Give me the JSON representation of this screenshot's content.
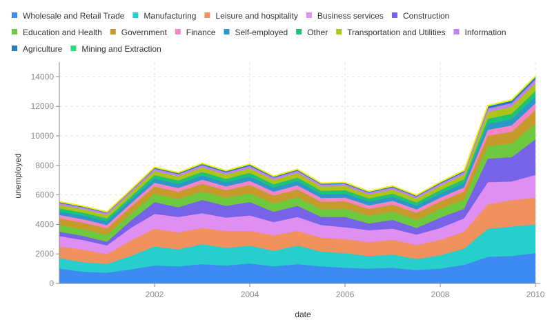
{
  "chart_data": {
    "type": "area",
    "stacked": true,
    "xlabel": "date",
    "ylabel": "unemployed",
    "xlim": [
      2000,
      2010.1
    ],
    "ylim": [
      0,
      15000
    ],
    "x_ticks": [
      2002,
      2004,
      2006,
      2008,
      2010
    ],
    "y_ticks": [
      0,
      2000,
      4000,
      6000,
      8000,
      10000,
      12000,
      14000
    ],
    "grid": true,
    "legend_position": "top",
    "x": [
      2000.0,
      2000.5,
      2001.0,
      2001.5,
      2002.0,
      2002.5,
      2003.0,
      2003.5,
      2004.0,
      2004.5,
      2005.0,
      2005.5,
      2006.0,
      2006.5,
      2007.0,
      2007.5,
      2008.0,
      2008.5,
      2009.0,
      2009.5,
      2010.0
    ],
    "series": [
      {
        "name": "Wholesale and Retail Trade",
        "color": "#3d8bf2",
        "values": [
          1000,
          780,
          720,
          950,
          1200,
          1150,
          1300,
          1200,
          1350,
          1150,
          1300,
          1150,
          1050,
          1000,
          1050,
          900,
          1000,
          1250,
          1800,
          1850,
          2050
        ]
      },
      {
        "name": "Manufacturing",
        "color": "#26cfcb",
        "values": [
          700,
          650,
          600,
          900,
          1300,
          1150,
          1350,
          1200,
          1200,
          1050,
          1250,
          1000,
          1000,
          850,
          900,
          750,
          900,
          1100,
          1900,
          2000,
          1950
        ]
      },
      {
        "name": "Leisure and hospitality",
        "color": "#f0915e",
        "values": [
          800,
          850,
          650,
          1050,
          1200,
          1150,
          1100,
          1150,
          1000,
          1050,
          1000,
          950,
          950,
          950,
          1000,
          950,
          1050,
          1150,
          1650,
          1800,
          1800
        ]
      },
      {
        "name": "Business services",
        "color": "#df8ef1",
        "values": [
          700,
          650,
          600,
          850,
          1000,
          1050,
          1000,
          900,
          1050,
          900,
          950,
          850,
          800,
          800,
          750,
          700,
          800,
          900,
          1500,
          1250,
          1550
        ]
      },
      {
        "name": "Construction",
        "color": "#7763e8",
        "values": [
          300,
          280,
          250,
          500,
          800,
          650,
          900,
          800,
          900,
          700,
          750,
          550,
          700,
          450,
          600,
          450,
          700,
          650,
          1600,
          1650,
          2400
        ]
      },
      {
        "name": "Education and Health",
        "color": "#6ec93e",
        "values": [
          450,
          460,
          470,
          480,
          560,
          560,
          580,
          560,
          600,
          580,
          580,
          540,
          560,
          530,
          560,
          550,
          600,
          640,
          850,
          920,
          1100
        ]
      },
      {
        "name": "Government",
        "color": "#c79a2c",
        "values": [
          450,
          440,
          430,
          440,
          500,
          490,
          520,
          500,
          560,
          520,
          540,
          490,
          500,
          460,
          480,
          470,
          500,
          530,
          700,
          800,
          900
        ]
      },
      {
        "name": "Finance",
        "color": "#f586c6",
        "values": [
          230,
          230,
          230,
          240,
          260,
          260,
          270,
          260,
          280,
          260,
          270,
          250,
          250,
          240,
          250,
          240,
          260,
          280,
          400,
          430,
          460
        ]
      },
      {
        "name": "Self-employed",
        "color": "#2e97c9",
        "values": [
          250,
          250,
          250,
          260,
          280,
          280,
          290,
          280,
          300,
          280,
          290,
          270,
          270,
          260,
          270,
          260,
          280,
          300,
          400,
          420,
          440
        ]
      },
      {
        "name": "Other",
        "color": "#1ec475",
        "values": [
          200,
          200,
          200,
          200,
          230,
          230,
          240,
          230,
          250,
          230,
          240,
          220,
          230,
          210,
          220,
          210,
          230,
          250,
          350,
          370,
          390
        ]
      },
      {
        "name": "Transportation and Utilities",
        "color": "#adc41a",
        "values": [
          240,
          240,
          240,
          250,
          280,
          280,
          300,
          290,
          310,
          290,
          300,
          280,
          280,
          260,
          280,
          270,
          290,
          320,
          450,
          480,
          520
        ]
      },
      {
        "name": "Information",
        "color": "#c083f2",
        "values": [
          120,
          120,
          120,
          130,
          150,
          150,
          160,
          150,
          160,
          150,
          150,
          140,
          140,
          130,
          140,
          130,
          140,
          160,
          240,
          250,
          260
        ]
      },
      {
        "name": "Agriculture",
        "color": "#2a79c2",
        "values": [
          80,
          70,
          70,
          80,
          90,
          80,
          100,
          90,
          100,
          80,
          90,
          80,
          80,
          70,
          80,
          70,
          90,
          100,
          150,
          150,
          160
        ]
      },
      {
        "name": "Mining and Extraction",
        "color": "#2fd97f",
        "values": [
          20,
          20,
          20,
          20,
          30,
          30,
          30,
          30,
          30,
          30,
          30,
          30,
          30,
          30,
          30,
          30,
          30,
          30,
          60,
          70,
          70
        ]
      }
    ]
  }
}
